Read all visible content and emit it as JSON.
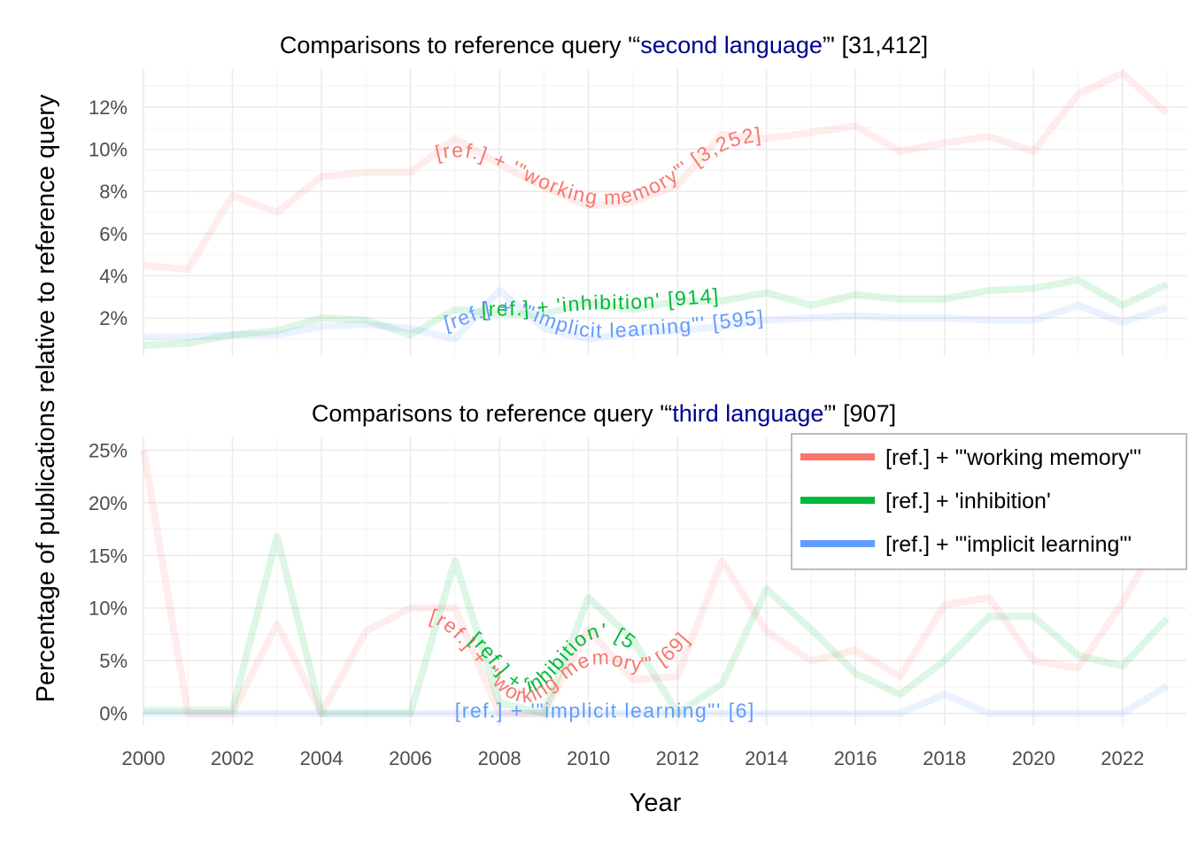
{
  "colors": {
    "working_memory": "#F8766D",
    "inhibition": "#00BA38",
    "implicit_learning": "#619CFF",
    "query_highlight": "#00008B"
  },
  "axes": {
    "x_title": "Year",
    "y_title": "Percentage of publications relative to reference query"
  },
  "legend": {
    "placement": "right (overlapping lower panel)",
    "items": [
      {
        "label": "[ref.] + '\"working memory\"'",
        "color": "#F8766D"
      },
      {
        "label": "[ref.] + 'inhibition'",
        "color": "#00BA38"
      },
      {
        "label": "[ref.] + '\"implicit learning\"'",
        "color": "#619CFF"
      }
    ]
  },
  "chart_data": [
    {
      "type": "line",
      "title_prefix": "Comparisons to reference query '“",
      "title_query": "second language",
      "title_suffix": "”' [31,412]",
      "xlabel": "Year",
      "ylabel": "Percentage of publications relative to reference query",
      "xlim": [
        2000,
        2023
      ],
      "ylim": [
        0.2,
        13.8
      ],
      "y_ticks": [
        2,
        4,
        6,
        8,
        10,
        12
      ],
      "y_tick_labels": [
        "2%",
        "4%",
        "6%",
        "8%",
        "10%",
        "12%"
      ],
      "grid": true,
      "x": [
        2000,
        2001,
        2002,
        2003,
        2004,
        2005,
        2006,
        2007,
        2008,
        2009,
        2010,
        2011,
        2012,
        2013,
        2014,
        2015,
        2016,
        2017,
        2018,
        2019,
        2020,
        2021,
        2022,
        2023
      ],
      "series": [
        {
          "name": "[ref.] + '\"working memory\"'",
          "key": "working_memory",
          "values": [
            4.5,
            4.3,
            7.8,
            7.0,
            8.7,
            8.9,
            8.9,
            10.5,
            9.3,
            8.2,
            7.3,
            7.5,
            8.3,
            10.7,
            10.5,
            10.8,
            11.1,
            9.9,
            10.3,
            10.6,
            9.9,
            12.6,
            13.6,
            11.7
          ],
          "curve_label": "[ref.] + '\"working memory\"' [3,252]"
        },
        {
          "name": "[ref.] + 'inhibition'",
          "key": "inhibition",
          "values": [
            0.7,
            0.8,
            1.2,
            1.4,
            2.0,
            1.9,
            1.2,
            2.4,
            2.2,
            2.2,
            2.7,
            2.4,
            2.8,
            2.8,
            3.2,
            2.6,
            3.1,
            2.9,
            2.9,
            3.3,
            3.4,
            3.8,
            2.6,
            3.6
          ],
          "curve_label": "[ref.] + 'inhibition' [914]"
        },
        {
          "name": "[ref.] + '\"implicit learning\"'",
          "key": "implicit_learning",
          "values": [
            1.1,
            1.1,
            1.2,
            1.2,
            1.6,
            1.7,
            1.5,
            1.0,
            3.3,
            1.5,
            1.0,
            1.3,
            1.4,
            1.6,
            1.9,
            2.0,
            2.1,
            2.0,
            2.0,
            1.9,
            1.9,
            2.6,
            1.8,
            2.5
          ],
          "curve_label": "[ref.] + '\"implicit learning\"' [595]"
        }
      ]
    },
    {
      "type": "line",
      "title_prefix": "Comparisons to reference query '“",
      "title_query": "third language",
      "title_suffix": "”' [907]",
      "xlabel": "Year",
      "ylabel": "Percentage of publications relative to reference query",
      "xlim": [
        2000,
        2023
      ],
      "ylim": [
        -1.2,
        26.2
      ],
      "y_ticks": [
        0,
        5,
        10,
        15,
        20,
        25
      ],
      "y_tick_labels": [
        "0%",
        "5%",
        "10%",
        "15%",
        "20%",
        "25%"
      ],
      "x_ticks": [
        2000,
        2002,
        2004,
        2006,
        2008,
        2010,
        2012,
        2014,
        2016,
        2018,
        2020,
        2022
      ],
      "x_tick_labels": [
        "2000",
        "2002",
        "2004",
        "2006",
        "2008",
        "2010",
        "2012",
        "2014",
        "2016",
        "2018",
        "2020",
        "2022"
      ],
      "grid": true,
      "x": [
        2000,
        2001,
        2002,
        2003,
        2004,
        2005,
        2006,
        2007,
        2008,
        2009,
        2010,
        2011,
        2012,
        2013,
        2014,
        2015,
        2016,
        2017,
        2018,
        2019,
        2020,
        2021,
        2022,
        2023
      ],
      "series": [
        {
          "name": "[ref.] + '\"working memory\"'",
          "key": "working_memory",
          "values": [
            25.0,
            0,
            0,
            8.5,
            0,
            7.8,
            10.0,
            10.0,
            0,
            0,
            8.0,
            3.2,
            3.5,
            14.5,
            7.8,
            5.0,
            6.0,
            3.5,
            10.3,
            11.0,
            5.0,
            4.3,
            10.5,
            18.0
          ],
          "curve_label": "[ref.] + '\"working memory\"' [69]"
        },
        {
          "name": "[ref.] + 'inhibition'",
          "key": "inhibition",
          "values": [
            0.3,
            0.3,
            0.3,
            16.8,
            0,
            0,
            0,
            14.5,
            1.0,
            0,
            11.0,
            7.0,
            0,
            2.8,
            11.8,
            8.0,
            3.8,
            1.8,
            5.0,
            9.2,
            9.2,
            5.5,
            4.5,
            9.0
          ],
          "curve_label": "[ref.] + 'inhibition' [56]"
        },
        {
          "name": "[ref.] + '\"implicit learning\"'",
          "key": "implicit_learning",
          "values": [
            0,
            0,
            0,
            0,
            0,
            0,
            0,
            0,
            0,
            0,
            0,
            0,
            0,
            0,
            0,
            0,
            0,
            0,
            1.8,
            0,
            0,
            0,
            0,
            2.6
          ],
          "curve_label": "[ref.] + '\"implicit learning\"' [6]"
        }
      ]
    }
  ]
}
